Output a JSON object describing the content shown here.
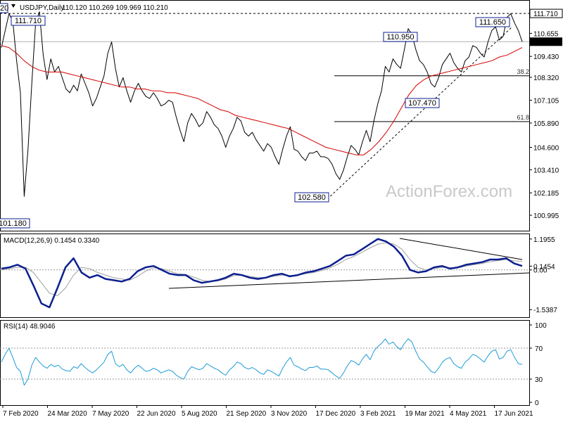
{
  "chart_data": {
    "type": "line",
    "symbol": "USDJPY,Daily",
    "ohlc": "110.120 110.269 109.969 110.210",
    "watermark": "ActionForex.com",
    "colors": {
      "price": "#000000",
      "ma": "#d40000",
      "macd": "#0c1f8f",
      "signal": "#a0a0a0",
      "rsi": "#1f9bd7",
      "box": "#0c1f8f",
      "grid": "#000000",
      "last_tag_bg": "#000000"
    },
    "x_labels": [
      "7 Feb 2020",
      "24 Mar 2020",
      "7 May 2020",
      "22 Jun 2020",
      "5 Aug 2020",
      "21 Sep 2020",
      "3 Nov 2020",
      "17 Dec 2020",
      "3 Feb 2021",
      "19 Mar 2021",
      "4 May 2021",
      "17 Jun 2021"
    ],
    "price": {
      "ylim": [
        100.4,
        112.2
      ],
      "ticks": [
        "111.710",
        "110.655",
        "110.210",
        "109.430",
        "108.320",
        "107.105",
        "105.890",
        "104.600",
        "103.410",
        "102.185",
        "100.995"
      ],
      "last": 110.21,
      "resistance_line": 111.71,
      "fib_levels": [
        {
          "label": "38.2",
          "value": 108.4
        },
        {
          "label": "61.8",
          "value": 105.97
        }
      ],
      "callouts": [
        "111.710",
        "110.950",
        "111.650",
        "107.470",
        "102.580",
        "101.180"
      ],
      "edge_tag": "20",
      "close_series": [
        109.9,
        110.8,
        111.7,
        111.3,
        109.2,
        107.5,
        102.0,
        104.5,
        108.0,
        111.2,
        111.8,
        109.5,
        108.2,
        109.3,
        108.6,
        108.9,
        108.3,
        107.7,
        107.5,
        107.9,
        107.6,
        108.5,
        108.0,
        107.5,
        106.8,
        107.2,
        107.8,
        108.4,
        109.6,
        110.2,
        108.8,
        107.8,
        108.3,
        107.6,
        107.0,
        107.6,
        108.0,
        107.6,
        107.3,
        107.2,
        107.5,
        107.2,
        106.8,
        106.9,
        107.1,
        107.0,
        106.2,
        105.5,
        104.9,
        105.9,
        106.4,
        106.1,
        105.7,
        105.9,
        106.5,
        106.2,
        105.8,
        105.6,
        105.2,
        104.6,
        105.2,
        105.6,
        106.2,
        106.0,
        105.4,
        105.2,
        105.4,
        105.0,
        104.7,
        104.4,
        104.8,
        104.6,
        104.1,
        103.7,
        104.5,
        105.2,
        105.7,
        104.5,
        104.4,
        104.1,
        103.9,
        104.3,
        104.3,
        104.4,
        104.1,
        104.1,
        104.0,
        103.7,
        103.2,
        102.9,
        103.4,
        104.1,
        104.7,
        104.5,
        104.2,
        104.9,
        105.5,
        104.9,
        106.0,
        106.9,
        107.6,
        108.9,
        108.6,
        109.3,
        109.0,
        108.8,
        109.8,
        110.9,
        110.6,
        109.8,
        109.2,
        109.0,
        108.6,
        108.0,
        107.8,
        108.3,
        109.0,
        109.3,
        109.6,
        109.1,
        108.8,
        108.6,
        109.2,
        109.4,
        110.0,
        109.9,
        109.6,
        109.4,
        110.2,
        110.8,
        111.0,
        110.3,
        110.5,
        111.5,
        111.7,
        111.2,
        110.8,
        110.21
      ],
      "ma_series": [
        110.0,
        109.9,
        109.6,
        109.2,
        108.9,
        108.7,
        108.6,
        108.6,
        108.6,
        108.5,
        108.4,
        108.3,
        108.2,
        108.1,
        108.0,
        107.9,
        107.8,
        107.8,
        107.7,
        107.7,
        107.6,
        107.6,
        107.5,
        107.5,
        107.4,
        107.3,
        107.2,
        107.0,
        106.8,
        106.6,
        106.5,
        106.3,
        106.2,
        106.1,
        106.0,
        105.9,
        105.8,
        105.7,
        105.6,
        105.4,
        105.2,
        105.0,
        104.8,
        104.6,
        104.5,
        104.4,
        104.3,
        104.2,
        104.2,
        104.5,
        104.9,
        105.4,
        106.0,
        106.7,
        107.4,
        107.9,
        108.2,
        108.4,
        108.5,
        108.6,
        108.7,
        108.8,
        108.9,
        109.0,
        109.1,
        109.2,
        109.4,
        109.5,
        109.7,
        109.9
      ]
    },
    "macd": {
      "label": "MACD(12,26,9) 0.1454 0.3340",
      "ylim": [
        -1.75,
        1.3
      ],
      "ticks": [
        "1.1955",
        "0.1454",
        "0.00",
        "-1.5387"
      ],
      "macd_series": [
        0.05,
        0.1,
        0.2,
        0.05,
        -0.6,
        -1.3,
        -1.45,
        -0.7,
        0.1,
        0.45,
        -0.1,
        -0.3,
        -0.2,
        -0.35,
        -0.4,
        -0.45,
        -0.35,
        -0.05,
        0.1,
        0.15,
        0.0,
        -0.15,
        -0.2,
        -0.2,
        -0.4,
        -0.5,
        -0.45,
        -0.4,
        -0.3,
        -0.15,
        -0.2,
        -0.3,
        -0.35,
        -0.3,
        -0.2,
        -0.15,
        -0.25,
        -0.2,
        -0.1,
        -0.05,
        0.05,
        0.15,
        0.35,
        0.55,
        0.6,
        0.8,
        1.0,
        1.2,
        1.1,
        0.9,
        0.55,
        0.0,
        -0.1,
        -0.05,
        0.1,
        0.15,
        0.05,
        0.1,
        0.2,
        0.25,
        0.3,
        0.4,
        0.4,
        0.45,
        0.25,
        0.15
      ],
      "signal_series": [
        0.0,
        0.05,
        0.1,
        0.1,
        -0.1,
        -0.5,
        -0.9,
        -1.0,
        -0.7,
        -0.2,
        0.1,
        0.05,
        -0.1,
        -0.2,
        -0.3,
        -0.35,
        -0.4,
        -0.25,
        -0.05,
        0.08,
        0.05,
        -0.05,
        -0.15,
        -0.18,
        -0.28,
        -0.4,
        -0.45,
        -0.42,
        -0.35,
        -0.22,
        -0.2,
        -0.25,
        -0.3,
        -0.3,
        -0.25,
        -0.2,
        -0.22,
        -0.2,
        -0.15,
        -0.1,
        -0.02,
        0.08,
        0.22,
        0.4,
        0.52,
        0.68,
        0.85,
        1.0,
        1.05,
        1.0,
        0.8,
        0.4,
        0.1,
        0.0,
        0.05,
        0.1,
        0.08,
        0.08,
        0.15,
        0.2,
        0.25,
        0.32,
        0.36,
        0.4,
        0.35,
        0.334
      ]
    },
    "rsi": {
      "label": "RSI(14) 48.9046",
      "ylim": [
        0,
        100
      ],
      "ticks": [
        "100",
        "70",
        "30",
        "0"
      ],
      "levels": [
        70,
        30
      ],
      "series": [
        52,
        62,
        70,
        58,
        45,
        40,
        22,
        30,
        48,
        58,
        52,
        47,
        44,
        49,
        46,
        48,
        43,
        41,
        40,
        46,
        44,
        50,
        45,
        41,
        38,
        42,
        47,
        52,
        62,
        66,
        50,
        46,
        49,
        42,
        38,
        44,
        48,
        44,
        40,
        41,
        44,
        42,
        38,
        40,
        42,
        40,
        35,
        32,
        30,
        40,
        46,
        44,
        42,
        44,
        50,
        47,
        44,
        42,
        38,
        35,
        42,
        46,
        52,
        50,
        45,
        43,
        45,
        42,
        38,
        36,
        42,
        40,
        37,
        34,
        44,
        52,
        58,
        48,
        46,
        43,
        41,
        45,
        45,
        47,
        43,
        43,
        42,
        38,
        34,
        31,
        38,
        47,
        54,
        52,
        48,
        56,
        62,
        55,
        66,
        72,
        76,
        82,
        75,
        78,
        72,
        68,
        76,
        82,
        78,
        66,
        56,
        52,
        46,
        40,
        38,
        44,
        52,
        56,
        58,
        50,
        46,
        44,
        52,
        56,
        62,
        60,
        56,
        52,
        60,
        66,
        68,
        56,
        58,
        66,
        68,
        58,
        50,
        48.9
      ]
    }
  }
}
